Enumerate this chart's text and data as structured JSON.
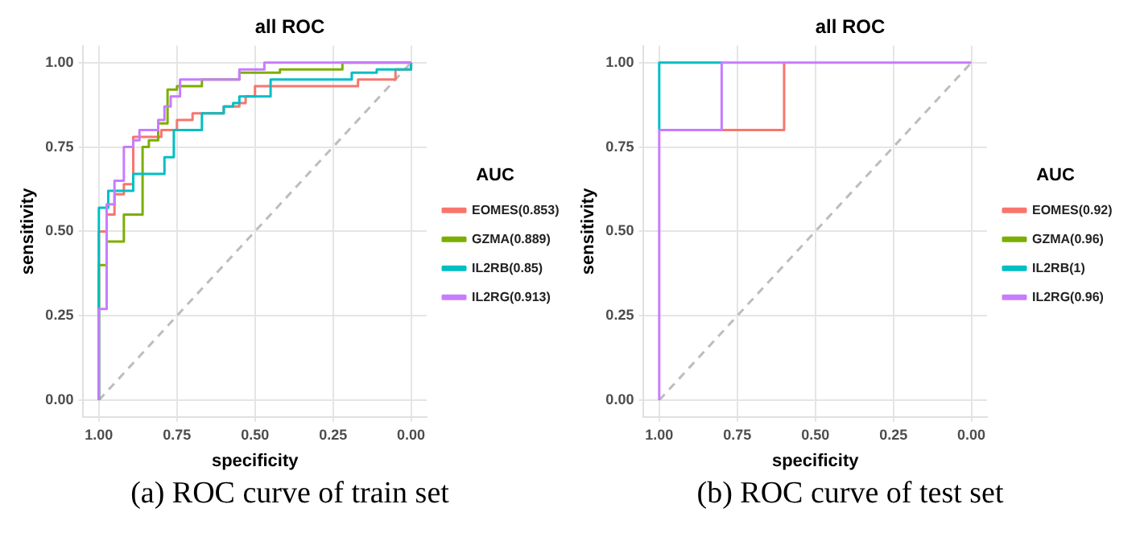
{
  "chart_data": [
    {
      "type": "line",
      "title": "all ROC",
      "xlabel": "specificity",
      "ylabel": "sensitivity",
      "legend_title": "AUC",
      "legend": "right",
      "grid": true,
      "xlim": [
        1.05,
        -0.05
      ],
      "ylim": [
        -0.05,
        1.05
      ],
      "xticks": [
        {
          "value": 1,
          "label": "1.00"
        },
        {
          "value": 0.75,
          "label": "0.75"
        },
        {
          "value": 0.5,
          "label": "0.50"
        },
        {
          "value": 0.25,
          "label": "0.25"
        },
        {
          "value": 0,
          "label": "0.00"
        }
      ],
      "yticks": [
        {
          "value": 0,
          "label": "0.00"
        },
        {
          "value": 0.25,
          "label": "0.25"
        },
        {
          "value": 0.5,
          "label": "0.50"
        },
        {
          "value": 0.75,
          "label": "0.75"
        },
        {
          "value": 1,
          "label": "1.00"
        }
      ],
      "annotations": [
        "(a) ROC curve of train set"
      ],
      "series": [
        {
          "type": "line",
          "color": "#bdbdbd",
          "line_style": "dashed",
          "x": [
            1,
            0
          ],
          "values": [
            0,
            1
          ]
        },
        {
          "name": "EOMES(0.853)",
          "color": "#f8766d",
          "x": [
            1,
            1,
            0.975,
            0.975,
            0.95,
            0.95,
            0.92,
            0.92,
            0.89,
            0.89,
            0.8,
            0.8,
            0.75,
            0.75,
            0.7,
            0.7,
            0.6,
            0.6,
            0.55,
            0.55,
            0.53,
            0.53,
            0.5,
            0.5,
            0.17,
            0.17,
            0.05,
            0.05,
            0,
            0
          ],
          "values": [
            0,
            0.5,
            0.5,
            0.55,
            0.55,
            0.61,
            0.61,
            0.64,
            0.64,
            0.78,
            0.78,
            0.8,
            0.8,
            0.83,
            0.83,
            0.85,
            0.85,
            0.87,
            0.87,
            0.88,
            0.88,
            0.9,
            0.9,
            0.93,
            0.93,
            0.95,
            0.95,
            0.98,
            0.98,
            1
          ]
        },
        {
          "name": "GZMA(0.889)",
          "color": "#7cae00",
          "x": [
            1,
            1,
            0.975,
            0.975,
            0.92,
            0.92,
            0.86,
            0.86,
            0.84,
            0.84,
            0.81,
            0.81,
            0.78,
            0.78,
            0.75,
            0.75,
            0.67,
            0.67,
            0.55,
            0.55,
            0.42,
            0.42,
            0.22,
            0.22,
            0
          ],
          "values": [
            0,
            0.4,
            0.4,
            0.47,
            0.47,
            0.55,
            0.55,
            0.75,
            0.75,
            0.77,
            0.77,
            0.82,
            0.82,
            0.92,
            0.92,
            0.93,
            0.93,
            0.95,
            0.95,
            0.97,
            0.97,
            0.98,
            0.98,
            1,
            1
          ]
        },
        {
          "name": "IL2RB(0.85)",
          "color": "#00bfc4",
          "x": [
            1,
            1,
            0.97,
            0.97,
            0.89,
            0.89,
            0.79,
            0.79,
            0.76,
            0.76,
            0.67,
            0.67,
            0.6,
            0.6,
            0.57,
            0.57,
            0.55,
            0.55,
            0.45,
            0.45,
            0.19,
            0.19,
            0.11,
            0.11,
            0,
            0
          ],
          "values": [
            0,
            0.57,
            0.57,
            0.62,
            0.62,
            0.67,
            0.67,
            0.72,
            0.72,
            0.8,
            0.8,
            0.85,
            0.85,
            0.87,
            0.87,
            0.88,
            0.88,
            0.9,
            0.9,
            0.95,
            0.95,
            0.97,
            0.97,
            0.98,
            0.98,
            1
          ]
        },
        {
          "name": "IL2RG(0.913)",
          "color": "#c77cff",
          "x": [
            1,
            1,
            0.975,
            0.975,
            0.95,
            0.95,
            0.92,
            0.92,
            0.89,
            0.89,
            0.87,
            0.87,
            0.81,
            0.81,
            0.79,
            0.79,
            0.77,
            0.77,
            0.74,
            0.74,
            0.55,
            0.55,
            0.47,
            0.47,
            0
          ],
          "values": [
            0,
            0.27,
            0.27,
            0.58,
            0.58,
            0.65,
            0.65,
            0.75,
            0.75,
            0.77,
            0.77,
            0.8,
            0.8,
            0.83,
            0.83,
            0.87,
            0.87,
            0.9,
            0.9,
            0.95,
            0.95,
            0.98,
            0.98,
            1,
            1
          ]
        }
      ]
    },
    {
      "type": "line",
      "title": "all ROC",
      "xlabel": "specificity",
      "ylabel": "sensitivity",
      "legend_title": "AUC",
      "legend": "right",
      "grid": true,
      "xlim": [
        1.05,
        -0.05
      ],
      "ylim": [
        -0.05,
        1.05
      ],
      "xticks": [
        {
          "value": 1,
          "label": "1.00"
        },
        {
          "value": 0.75,
          "label": "0.75"
        },
        {
          "value": 0.5,
          "label": "0.50"
        },
        {
          "value": 0.25,
          "label": "0.25"
        },
        {
          "value": 0,
          "label": "0.00"
        }
      ],
      "yticks": [
        {
          "value": 0,
          "label": "0.00"
        },
        {
          "value": 0.25,
          "label": "0.25"
        },
        {
          "value": 0.5,
          "label": "0.50"
        },
        {
          "value": 0.75,
          "label": "0.75"
        },
        {
          "value": 1,
          "label": "1.00"
        }
      ],
      "annotations": [
        "(b) ROC curve of test set"
      ],
      "series": [
        {
          "type": "line",
          "color": "#bdbdbd",
          "line_style": "dashed",
          "x": [
            1,
            0
          ],
          "values": [
            0,
            1
          ]
        },
        {
          "name": "EOMES(0.92)",
          "color": "#f8766d",
          "x": [
            0.8,
            0.6,
            0.6
          ],
          "values": [
            0.8,
            0.8,
            1
          ]
        },
        {
          "name": "GZMA(0.96)",
          "color": "#7cae00"
        },
        {
          "name": "IL2RB(1)",
          "color": "#00bfc4",
          "x": [
            1,
            1,
            0.8
          ],
          "values": [
            0.8,
            1,
            1
          ]
        },
        {
          "name": "IL2RG(0.96)",
          "color": "#c77cff",
          "x": [
            1,
            1,
            0.8,
            0.8,
            0
          ],
          "values": [
            0,
            0.8,
            0.8,
            1,
            1
          ]
        }
      ]
    }
  ]
}
